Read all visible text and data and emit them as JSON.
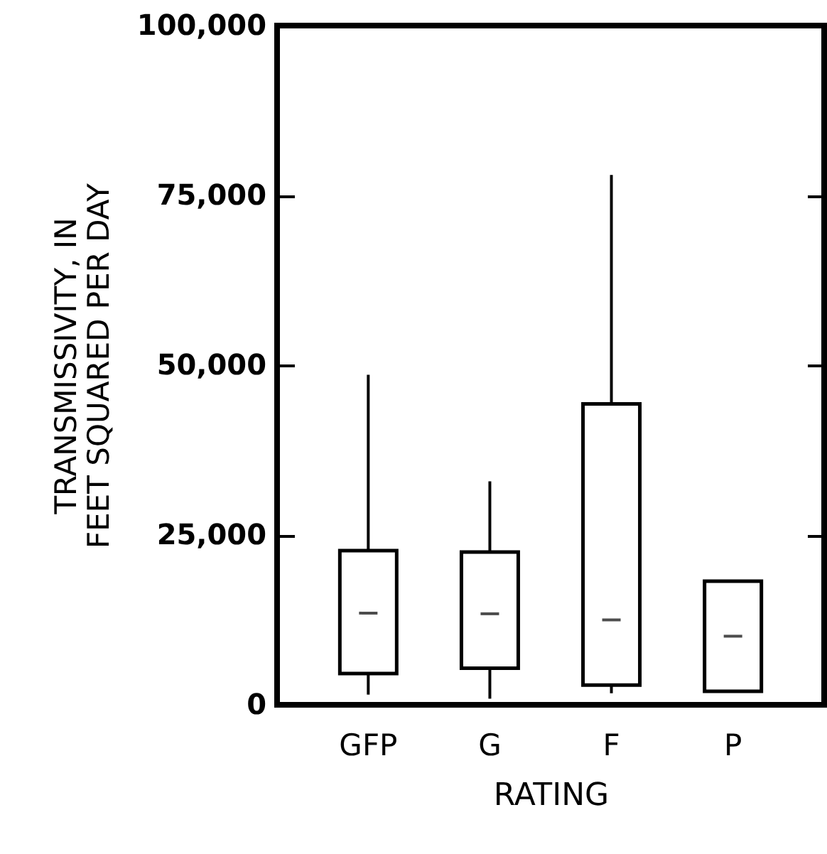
{
  "chart_data": {
    "type": "box",
    "xlabel": "RATING",
    "ylabel": "TRANSMISSIVITY, IN\nFEET SQUARED PER DAY",
    "categories": [
      "GFP",
      "G",
      "F",
      "P"
    ],
    "boxes": [
      {
        "low": 1500,
        "q1": 4600,
        "median": 13500,
        "q3": 22700,
        "high": 48600
      },
      {
        "low": 900,
        "q1": 5400,
        "median": 13400,
        "q3": 22500,
        "high": 32900
      },
      {
        "low": 1700,
        "q1": 2900,
        "median": 12500,
        "q3": 44300,
        "high": 78000
      },
      {
        "low": 2000,
        "q1": 2000,
        "median": 10100,
        "q3": 18200,
        "high": 18200
      }
    ],
    "ylim": [
      0,
      100000
    ],
    "yticks": [
      0,
      {
        "value": 25000,
        "label": "25,000"
      },
      {
        "value": 50000,
        "label": "50,000"
      },
      {
        "value": 75000,
        "label": "75,000"
      },
      {
        "value": 100000,
        "label": "100,000"
      }
    ],
    "grid": false
  }
}
